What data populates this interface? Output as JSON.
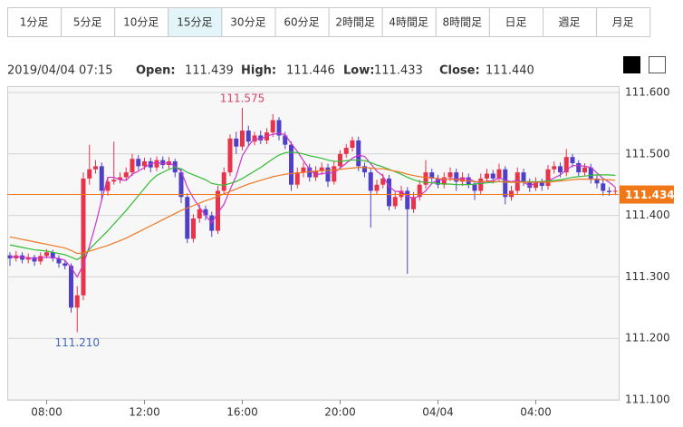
{
  "tabs": [
    "1分足",
    "5分足",
    "10分足",
    "15分足",
    "30分足",
    "60分足",
    "2時間足",
    "4時間足",
    "8時間足",
    "日足",
    "週足",
    "月足"
  ],
  "active_tab": 3,
  "header": {
    "datetime": "2019/04/04 07:15",
    "open_label": "Open:",
    "open": "111.439",
    "high_label": "High:",
    "high": "111.446",
    "low_label": "Low:",
    "low": "111.433",
    "close_label": "Close:",
    "close": "111.440"
  },
  "chart_data": {
    "type": "candlestick",
    "up_color": "#e8334a",
    "down_color": "#5040c8",
    "grid": true,
    "ylim": [
      111.1,
      111.6
    ],
    "yticks": [
      {
        "value": 111.1,
        "label": "111.100"
      },
      {
        "value": 111.2,
        "label": "111.200"
      },
      {
        "value": 111.3,
        "label": "111.300"
      },
      {
        "value": 111.4,
        "label": "111.400"
      },
      {
        "value": 111.5,
        "label": "111.500"
      },
      {
        "value": 111.6,
        "label": "111.600"
      }
    ],
    "last_price": 111.434,
    "last_price_color": "#f07818",
    "extreme_labels": {
      "high": "111.575",
      "low": "111.210"
    },
    "categories": [
      null,
      null,
      null,
      null,
      null,
      null,
      "08:00",
      null,
      null,
      null,
      null,
      null,
      null,
      null,
      null,
      null,
      null,
      null,
      null,
      null,
      null,
      null,
      "12:00",
      null,
      null,
      null,
      null,
      null,
      null,
      null,
      null,
      null,
      null,
      null,
      null,
      null,
      null,
      null,
      "16:00",
      null,
      null,
      null,
      null,
      null,
      null,
      null,
      null,
      null,
      null,
      null,
      null,
      null,
      null,
      null,
      "20:00",
      null,
      null,
      null,
      null,
      null,
      null,
      null,
      null,
      null,
      null,
      null,
      null,
      null,
      null,
      null,
      "04/04",
      null,
      null,
      null,
      null,
      null,
      null,
      null,
      null,
      null,
      null,
      null,
      null,
      null,
      null,
      null,
      "04:00",
      null,
      null,
      null,
      null,
      null,
      null,
      null,
      null,
      null,
      null,
      null,
      null,
      null
    ],
    "candles": [
      [
        111.335,
        111.34,
        111.318,
        111.33
      ],
      [
        111.33,
        111.342,
        111.325,
        111.335
      ],
      [
        111.335,
        111.34,
        111.322,
        111.328
      ],
      [
        111.328,
        111.338,
        111.322,
        111.332
      ],
      [
        111.332,
        111.336,
        111.318,
        111.325
      ],
      [
        111.325,
        111.34,
        111.32,
        111.334
      ],
      [
        111.334,
        111.345,
        111.33,
        111.34
      ],
      [
        111.34,
        111.344,
        111.325,
        111.33
      ],
      [
        111.33,
        111.335,
        111.315,
        111.322
      ],
      [
        111.322,
        111.328,
        111.312,
        111.318
      ],
      [
        111.318,
        111.322,
        111.242,
        111.25
      ],
      [
        111.25,
        111.285,
        111.21,
        111.27
      ],
      [
        111.27,
        111.47,
        111.262,
        111.46
      ],
      [
        111.46,
        111.515,
        111.45,
        111.475
      ],
      [
        111.475,
        111.49,
        111.468,
        111.48
      ],
      [
        111.48,
        111.486,
        111.425,
        111.44
      ],
      [
        111.44,
        111.462,
        111.432,
        111.455
      ],
      [
        111.455,
        111.52,
        111.45,
        111.458
      ],
      [
        111.458,
        111.47,
        111.452,
        111.462
      ],
      [
        111.462,
        111.478,
        111.456,
        111.47
      ],
      [
        111.47,
        111.5,
        111.464,
        111.492
      ],
      [
        111.492,
        111.498,
        111.474,
        111.48
      ],
      [
        111.48,
        111.494,
        111.474,
        111.488
      ],
      [
        111.488,
        111.494,
        111.47,
        111.478
      ],
      [
        111.478,
        111.496,
        111.472,
        111.49
      ],
      [
        111.49,
        111.496,
        111.476,
        111.482
      ],
      [
        111.482,
        111.495,
        111.476,
        111.488
      ],
      [
        111.488,
        111.492,
        111.462,
        111.47
      ],
      [
        111.47,
        111.476,
        111.42,
        111.43
      ],
      [
        111.43,
        111.436,
        111.355,
        111.362
      ],
      [
        111.362,
        111.402,
        111.356,
        111.395
      ],
      [
        111.395,
        111.418,
        111.388,
        111.41
      ],
      [
        111.41,
        111.416,
        111.392,
        111.4
      ],
      [
        111.4,
        111.406,
        111.365,
        111.375
      ],
      [
        111.375,
        111.448,
        111.37,
        111.44
      ],
      [
        111.44,
        111.478,
        111.434,
        111.47
      ],
      [
        111.47,
        111.532,
        111.464,
        111.525
      ],
      [
        111.525,
        111.536,
        111.5,
        111.512
      ],
      [
        111.512,
        111.575,
        111.506,
        111.538
      ],
      [
        111.538,
        111.546,
        111.512,
        111.52
      ],
      [
        111.52,
        111.536,
        111.514,
        111.53
      ],
      [
        111.53,
        111.538,
        111.516,
        111.522
      ],
      [
        111.522,
        111.542,
        111.516,
        111.535
      ],
      [
        111.535,
        111.565,
        111.528,
        111.555
      ],
      [
        111.555,
        111.56,
        111.522,
        111.53
      ],
      [
        111.53,
        111.536,
        111.508,
        111.515
      ],
      [
        111.515,
        111.52,
        111.44,
        111.45
      ],
      [
        111.45,
        111.478,
        111.444,
        111.47
      ],
      [
        111.47,
        111.486,
        111.462,
        111.478
      ],
      [
        111.478,
        111.484,
        111.455,
        111.462
      ],
      [
        111.462,
        111.48,
        111.456,
        111.472
      ],
      [
        111.472,
        111.486,
        111.466,
        111.478
      ],
      [
        111.478,
        111.484,
        111.446,
        111.455
      ],
      [
        111.455,
        111.488,
        111.45,
        111.48
      ],
      [
        111.48,
        111.506,
        111.474,
        111.5
      ],
      [
        111.5,
        111.516,
        111.494,
        111.51
      ],
      [
        111.51,
        111.528,
        111.504,
        111.522
      ],
      [
        111.522,
        111.528,
        111.472,
        111.48
      ],
      [
        111.48,
        111.486,
        111.462,
        111.47
      ],
      [
        111.47,
        111.476,
        111.38,
        111.44
      ],
      [
        111.44,
        111.458,
        111.434,
        111.45
      ],
      [
        111.45,
        111.468,
        111.444,
        111.46
      ],
      [
        111.46,
        111.466,
        111.408,
        111.415
      ],
      [
        111.415,
        111.438,
        111.41,
        111.43
      ],
      [
        111.43,
        111.448,
        111.424,
        111.44
      ],
      [
        111.44,
        111.446,
        111.305,
        111.41
      ],
      [
        111.41,
        111.438,
        111.404,
        111.43
      ],
      [
        111.43,
        111.458,
        111.424,
        111.45
      ],
      [
        111.45,
        111.49,
        111.444,
        111.47
      ],
      [
        111.47,
        111.476,
        111.454,
        111.46
      ],
      [
        111.46,
        111.466,
        111.444,
        111.45
      ],
      [
        111.45,
        111.47,
        111.444,
        111.462
      ],
      [
        111.462,
        111.478,
        111.456,
        111.47
      ],
      [
        111.47,
        111.476,
        111.44,
        111.455
      ],
      [
        111.455,
        111.47,
        111.448,
        111.462
      ],
      [
        111.462,
        111.468,
        111.444,
        111.45
      ],
      [
        111.45,
        111.456,
        111.425,
        111.44
      ],
      [
        111.44,
        111.468,
        111.434,
        111.46
      ],
      [
        111.46,
        111.476,
        111.454,
        111.468
      ],
      [
        111.468,
        111.474,
        111.452,
        111.46
      ],
      [
        111.46,
        111.484,
        111.454,
        111.475
      ],
      [
        111.475,
        111.48,
        111.418,
        111.43
      ],
      [
        111.43,
        111.448,
        111.424,
        111.44
      ],
      [
        111.44,
        111.478,
        111.434,
        111.47
      ],
      [
        111.47,
        111.476,
        111.448,
        111.455
      ],
      [
        111.455,
        111.46,
        111.438,
        111.445
      ],
      [
        111.445,
        111.462,
        111.44,
        111.455
      ],
      [
        111.455,
        111.46,
        111.44,
        111.448
      ],
      [
        111.448,
        111.482,
        111.442,
        111.475
      ],
      [
        111.475,
        111.488,
        111.468,
        111.48
      ],
      [
        111.48,
        111.486,
        111.462,
        111.47
      ],
      [
        111.47,
        111.508,
        111.464,
        111.495
      ],
      [
        111.495,
        111.5,
        111.478,
        111.485
      ],
      [
        111.485,
        111.49,
        111.464,
        111.47
      ],
      [
        111.47,
        111.485,
        111.464,
        111.478
      ],
      [
        111.478,
        111.484,
        111.452,
        111.46
      ],
      [
        111.46,
        111.466,
        111.444,
        111.452
      ],
      [
        111.452,
        111.458,
        111.432,
        111.44
      ],
      [
        111.44,
        111.446,
        111.432,
        111.438
      ],
      [
        111.439,
        111.446,
        111.433,
        111.44
      ]
    ],
    "series": [
      {
        "color": "#cc33cc",
        "values": [
          111.332,
          111.333,
          111.332,
          111.331,
          111.33,
          111.331,
          111.332,
          111.331,
          111.33,
          111.327,
          111.315,
          111.3,
          111.32,
          111.35,
          111.385,
          111.425,
          111.462,
          111.462,
          111.458,
          111.457,
          111.467,
          111.472,
          111.478,
          111.484,
          111.486,
          111.484,
          111.486,
          111.48,
          111.472,
          111.446,
          111.428,
          111.413,
          111.4,
          111.388,
          111.404,
          111.418,
          111.442,
          111.464,
          111.497,
          111.513,
          111.525,
          111.524,
          111.529,
          111.532,
          111.534,
          111.531,
          111.517,
          111.504,
          111.489,
          111.475,
          111.466,
          111.468,
          111.469,
          111.469,
          111.477,
          111.485,
          111.493,
          111.498,
          111.496,
          111.484,
          111.472,
          111.464,
          111.447,
          111.439,
          111.439,
          111.431,
          111.427,
          111.432,
          111.44,
          111.452,
          111.458,
          111.458,
          111.46,
          111.459,
          111.46,
          111.46,
          111.455,
          111.453,
          111.456,
          111.456,
          111.461,
          111.457,
          111.455,
          111.457,
          111.454,
          111.448,
          111.453,
          111.455,
          111.456,
          111.461,
          111.466,
          111.474,
          111.481,
          111.481,
          111.48,
          111.478,
          111.469,
          111.46,
          111.454,
          111.446
        ]
      },
      {
        "color": "#33bb33",
        "values": [
          111.352,
          111.35,
          111.348,
          111.346,
          111.344,
          111.343,
          111.342,
          111.34,
          111.338,
          111.336,
          111.332,
          111.328,
          111.335,
          111.345,
          111.355,
          111.365,
          111.375,
          111.386,
          111.397,
          111.408,
          111.42,
          111.432,
          111.444,
          111.456,
          111.465,
          111.47,
          111.475,
          111.478,
          111.476,
          111.47,
          111.466,
          111.462,
          111.458,
          111.452,
          111.45,
          111.449,
          111.452,
          111.455,
          111.46,
          111.466,
          111.472,
          111.478,
          111.485,
          111.492,
          111.498,
          111.502,
          111.503,
          111.502,
          111.5,
          111.497,
          111.495,
          111.493,
          111.49,
          111.488,
          111.488,
          111.489,
          111.49,
          111.49,
          111.489,
          111.486,
          111.482,
          111.479,
          111.475,
          111.471,
          111.467,
          111.462,
          111.458,
          111.455,
          111.454,
          111.453,
          111.452,
          111.451,
          111.451,
          111.45,
          111.45,
          111.45,
          111.451,
          111.452,
          111.453,
          111.454,
          111.455,
          111.455,
          111.454,
          111.454,
          111.455,
          111.455,
          111.455,
          111.455,
          111.456,
          111.457,
          111.458,
          111.46,
          111.462,
          111.463,
          111.464,
          111.465,
          111.466,
          111.466,
          111.466,
          111.465
        ]
      },
      {
        "color": "#ee7722",
        "values": [
          111.365,
          111.363,
          111.361,
          111.359,
          111.357,
          111.355,
          111.353,
          111.351,
          111.349,
          111.347,
          111.343,
          111.338,
          111.339,
          111.342,
          111.345,
          111.348,
          111.351,
          111.355,
          111.359,
          111.363,
          111.368,
          111.373,
          111.378,
          111.383,
          111.388,
          111.393,
          111.398,
          111.403,
          111.408,
          111.412,
          111.416,
          111.42,
          111.424,
          111.427,
          111.431,
          111.435,
          111.439,
          111.443,
          111.447,
          111.451,
          111.454,
          111.457,
          111.46,
          111.463,
          111.465,
          111.467,
          111.468,
          111.469,
          111.47,
          111.471,
          111.472,
          111.473,
          111.473,
          111.474,
          111.475,
          111.476,
          111.477,
          111.478,
          111.478,
          111.477,
          111.476,
          111.476,
          111.474,
          111.472,
          111.47,
          111.467,
          111.465,
          111.463,
          111.462,
          111.461,
          111.46,
          111.459,
          111.459,
          111.458,
          111.457,
          111.456,
          111.455,
          111.455,
          111.455,
          111.455,
          111.455,
          111.454,
          111.454,
          111.454,
          111.454,
          111.454,
          111.454,
          111.454,
          111.454,
          111.455,
          111.456,
          111.457,
          111.458,
          111.459,
          111.459,
          111.459,
          111.459,
          111.458,
          111.458,
          111.457
        ]
      }
    ]
  }
}
